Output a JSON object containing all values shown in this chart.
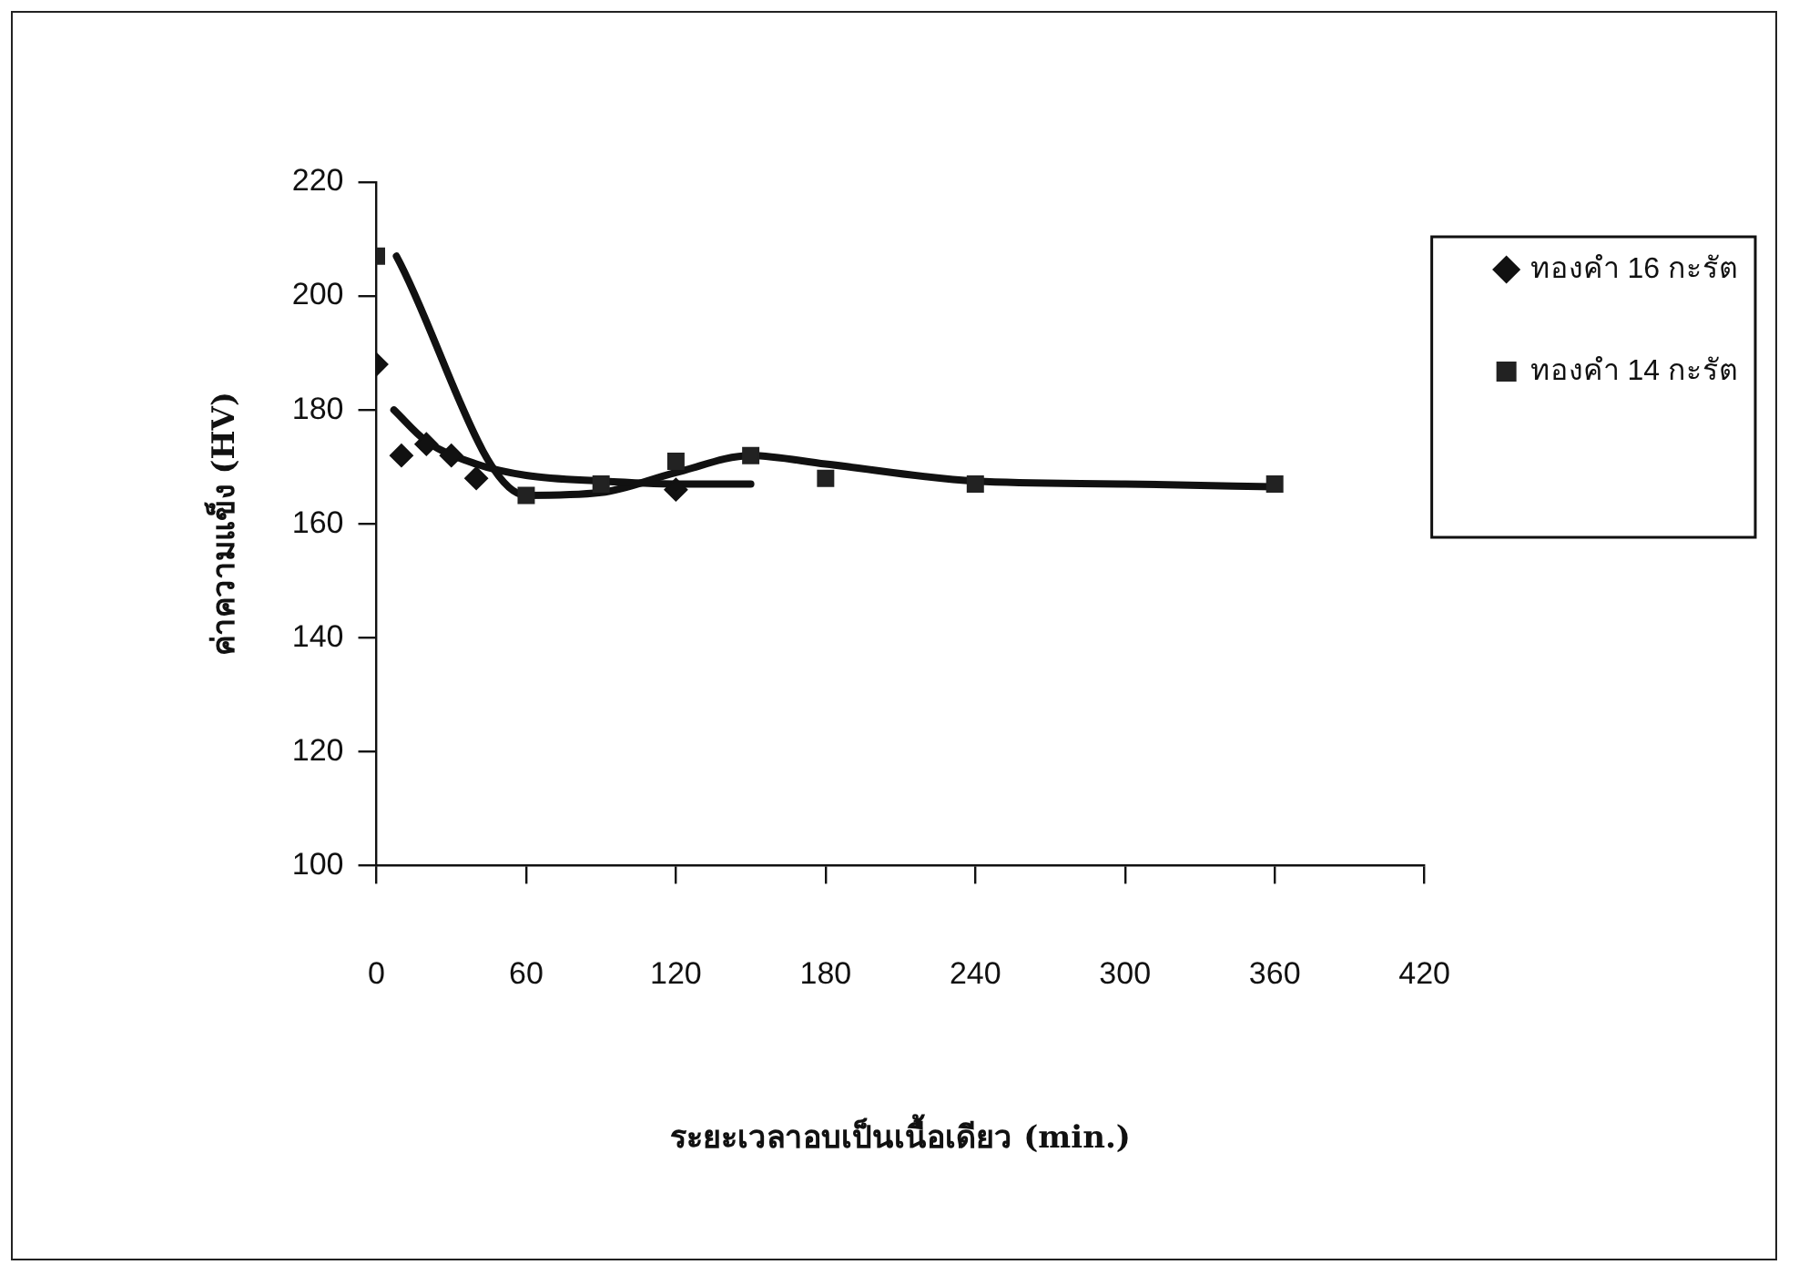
{
  "chart_data": {
    "type": "scatter",
    "xlabel": "ระยะเวลาอบเป็นเนื้อเดียว (min.)",
    "ylabel": "ค่าความแข็ง (HV)",
    "xlim": [
      0,
      420
    ],
    "xticks": [
      0,
      60,
      120,
      180,
      240,
      300,
      360,
      420
    ],
    "ylim": [
      100,
      220
    ],
    "yticks": [
      100,
      120,
      140,
      160,
      180,
      200,
      220
    ],
    "grid": false,
    "legend": "right",
    "series": [
      {
        "name": "ทองคำ 16 กะรัต",
        "marker": "diamond",
        "color": "#111111",
        "x": [
          0,
          10,
          20,
          30,
          40,
          120
        ],
        "values": [
          188,
          172,
          174,
          172,
          168,
          166
        ]
      },
      {
        "name": "ทองคำ 14 กะรัต",
        "marker": "square",
        "color": "#222222",
        "x": [
          0,
          60,
          90,
          120,
          150,
          180,
          240,
          360
        ],
        "values": [
          207,
          165,
          167,
          171,
          172,
          168,
          167,
          167
        ]
      },
      {
        "type": "line",
        "marker": "none",
        "color": "#111111",
        "x": [
          7,
          20,
          40,
          60,
          90,
          120,
          150
        ],
        "values": [
          180,
          174.5,
          170.5,
          168.5,
          167.5,
          167,
          167
        ]
      },
      {
        "type": "line",
        "marker": "none",
        "color": "#111111",
        "x": [
          8,
          60,
          90,
          120,
          150,
          180,
          240,
          300,
          360
        ],
        "values": [
          207,
          165,
          165.5,
          169,
          172,
          170.5,
          167.5,
          167,
          166.5
        ]
      }
    ]
  }
}
